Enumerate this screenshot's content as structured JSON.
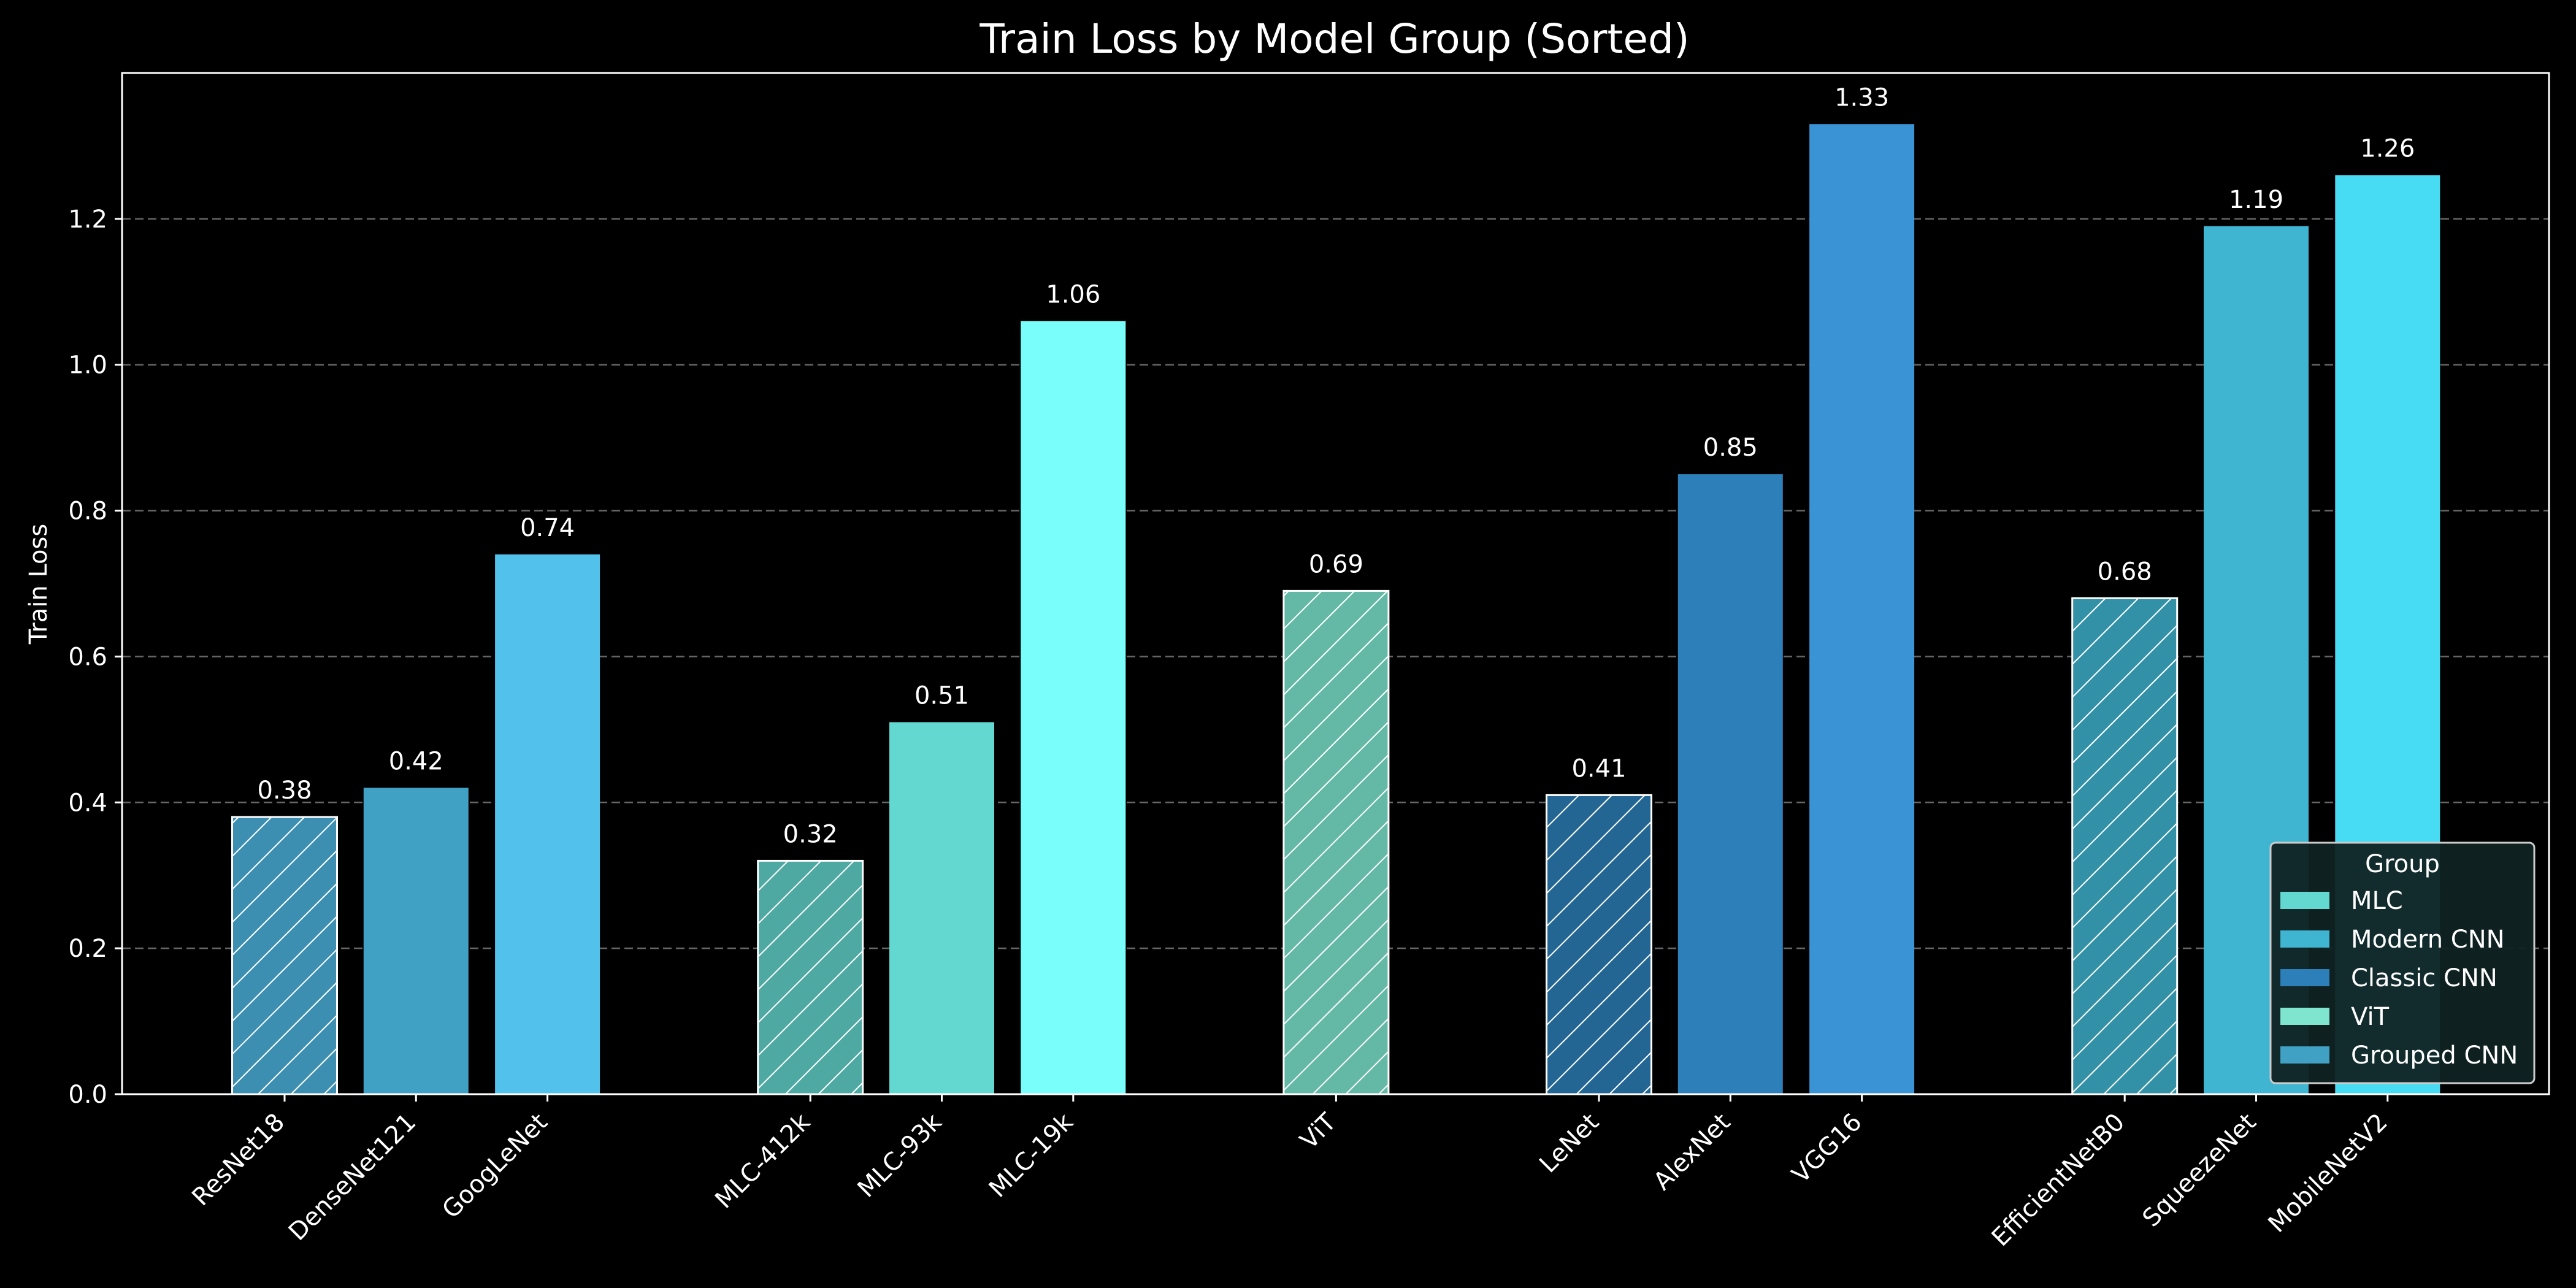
{
  "chart_data": {
    "type": "bar",
    "title": "Train Loss by Model Group (Sorted)",
    "xlabel": "",
    "ylabel": "Train Loss",
    "ylim": [
      0,
      1.4
    ],
    "yticks": [
      "0.0",
      "0.2",
      "0.4",
      "0.6",
      "0.8",
      "1.0",
      "1.2"
    ],
    "grid": "y-dashed",
    "legend": {
      "title": "Group",
      "placement": "lower-right",
      "entries": [
        {
          "name": "MLC",
          "color": "#62d8d0"
        },
        {
          "name": "Modern CNN",
          "color": "#3fb5d1"
        },
        {
          "name": "Classic CNN",
          "color": "#2c7fb8"
        },
        {
          "name": "ViT",
          "color": "#7fe5cf"
        },
        {
          "name": "Grouped CNN",
          "color": "#41a1c4"
        }
      ]
    },
    "bars": [
      {
        "category": "ResNet18",
        "value": 0.38,
        "label": "0.38",
        "group": 0,
        "color": "#3d8fb2",
        "hatched": true
      },
      {
        "category": "DenseNet121",
        "value": 0.42,
        "label": "0.42",
        "group": 0,
        "color": "#41a1c4",
        "hatched": false
      },
      {
        "category": "GoogLeNet",
        "value": 0.74,
        "label": "0.74",
        "group": 0,
        "color": "#52c1ec",
        "hatched": false
      },
      {
        "category": "MLC-412k",
        "value": 0.32,
        "label": "0.32",
        "group": 1,
        "color": "#4ea9a2",
        "hatched": true
      },
      {
        "category": "MLC-93k",
        "value": 0.51,
        "label": "0.51",
        "group": 1,
        "color": "#62d8d0",
        "hatched": false
      },
      {
        "category": "MLC-19k",
        "value": 1.06,
        "label": "1.06",
        "group": 1,
        "color": "#79fefc",
        "hatched": false
      },
      {
        "category": "ViT",
        "value": 0.69,
        "label": "0.69",
        "group": 2,
        "color": "#64b9a6",
        "hatched": true
      },
      {
        "category": "LeNet",
        "value": 0.41,
        "label": "0.41",
        "group": 3,
        "color": "#236593",
        "hatched": true
      },
      {
        "category": "AlexNet",
        "value": 0.85,
        "label": "0.85",
        "group": 3,
        "color": "#2c7fb8",
        "hatched": false
      },
      {
        "category": "VGG16",
        "value": 1.33,
        "label": "1.33",
        "group": 3,
        "color": "#3993d4",
        "hatched": false
      },
      {
        "category": "EfficientNetB0",
        "value": 0.68,
        "label": "0.68",
        "group": 4,
        "color": "#3391a7",
        "hatched": true
      },
      {
        "category": "SqueezeNet",
        "value": 1.19,
        "label": "1.19",
        "group": 4,
        "color": "#3fb5d1",
        "hatched": false
      },
      {
        "category": "MobileNetV2",
        "value": 1.26,
        "label": "1.26",
        "group": 4,
        "color": "#48dcf4",
        "hatched": false
      }
    ]
  }
}
